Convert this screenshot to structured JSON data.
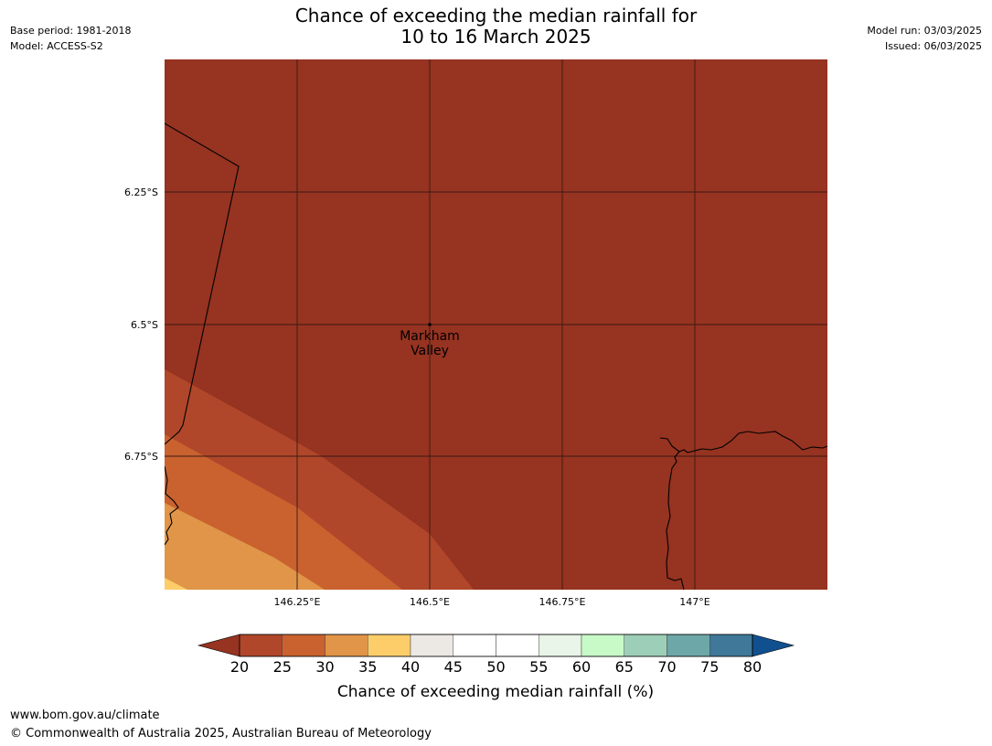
{
  "header": {
    "title_line1": "Chance of exceeding the median rainfall for",
    "title_line2": "10 to 16 March 2025",
    "base_period": "Base period: 1981-2018",
    "model": "Model: ACCESS-S2",
    "model_run": "Model run: 03/03/2025",
    "issued": "Issued: 06/03/2025"
  },
  "map": {
    "place": {
      "name_line1": "Markham",
      "name_line2": "Valley"
    },
    "lat_labels": [
      "6.25°S",
      "6.5°S",
      "6.75°S"
    ],
    "lon_labels": [
      "146.25°E",
      "146.5°E",
      "146.75°E",
      "147°E"
    ],
    "lat_values": [
      -6.25,
      -6.5,
      -6.75
    ],
    "lon_values": [
      146.25,
      146.5,
      146.75,
      147.0
    ],
    "extent": {
      "lon_min": 146.0,
      "lon_max": 147.25,
      "lat_min": -7.0,
      "lat_max": -6.0
    }
  },
  "colorbar": {
    "label": "Chance of exceeding median rainfall (%)",
    "ticks": [
      "20",
      "25",
      "30",
      "35",
      "40",
      "45",
      "50",
      "55",
      "60",
      "65",
      "70",
      "75",
      "80"
    ],
    "colors": [
      "#b0472a",
      "#c9622f",
      "#e09548",
      "#fdcd6a",
      "#ece9e5",
      "#ffffff",
      "#ffffff",
      "#e8f5e8",
      "#c8fac8",
      "#9dcfb8",
      "#6ea7a7",
      "#3f7898"
    ],
    "under_color": "#963321",
    "over_color": "#10508f"
  },
  "footer": {
    "url": "www.bom.gov.au/climate",
    "copyright": "© Commonwealth of Australia 2025, Australian Bureau of Meteorology"
  }
}
